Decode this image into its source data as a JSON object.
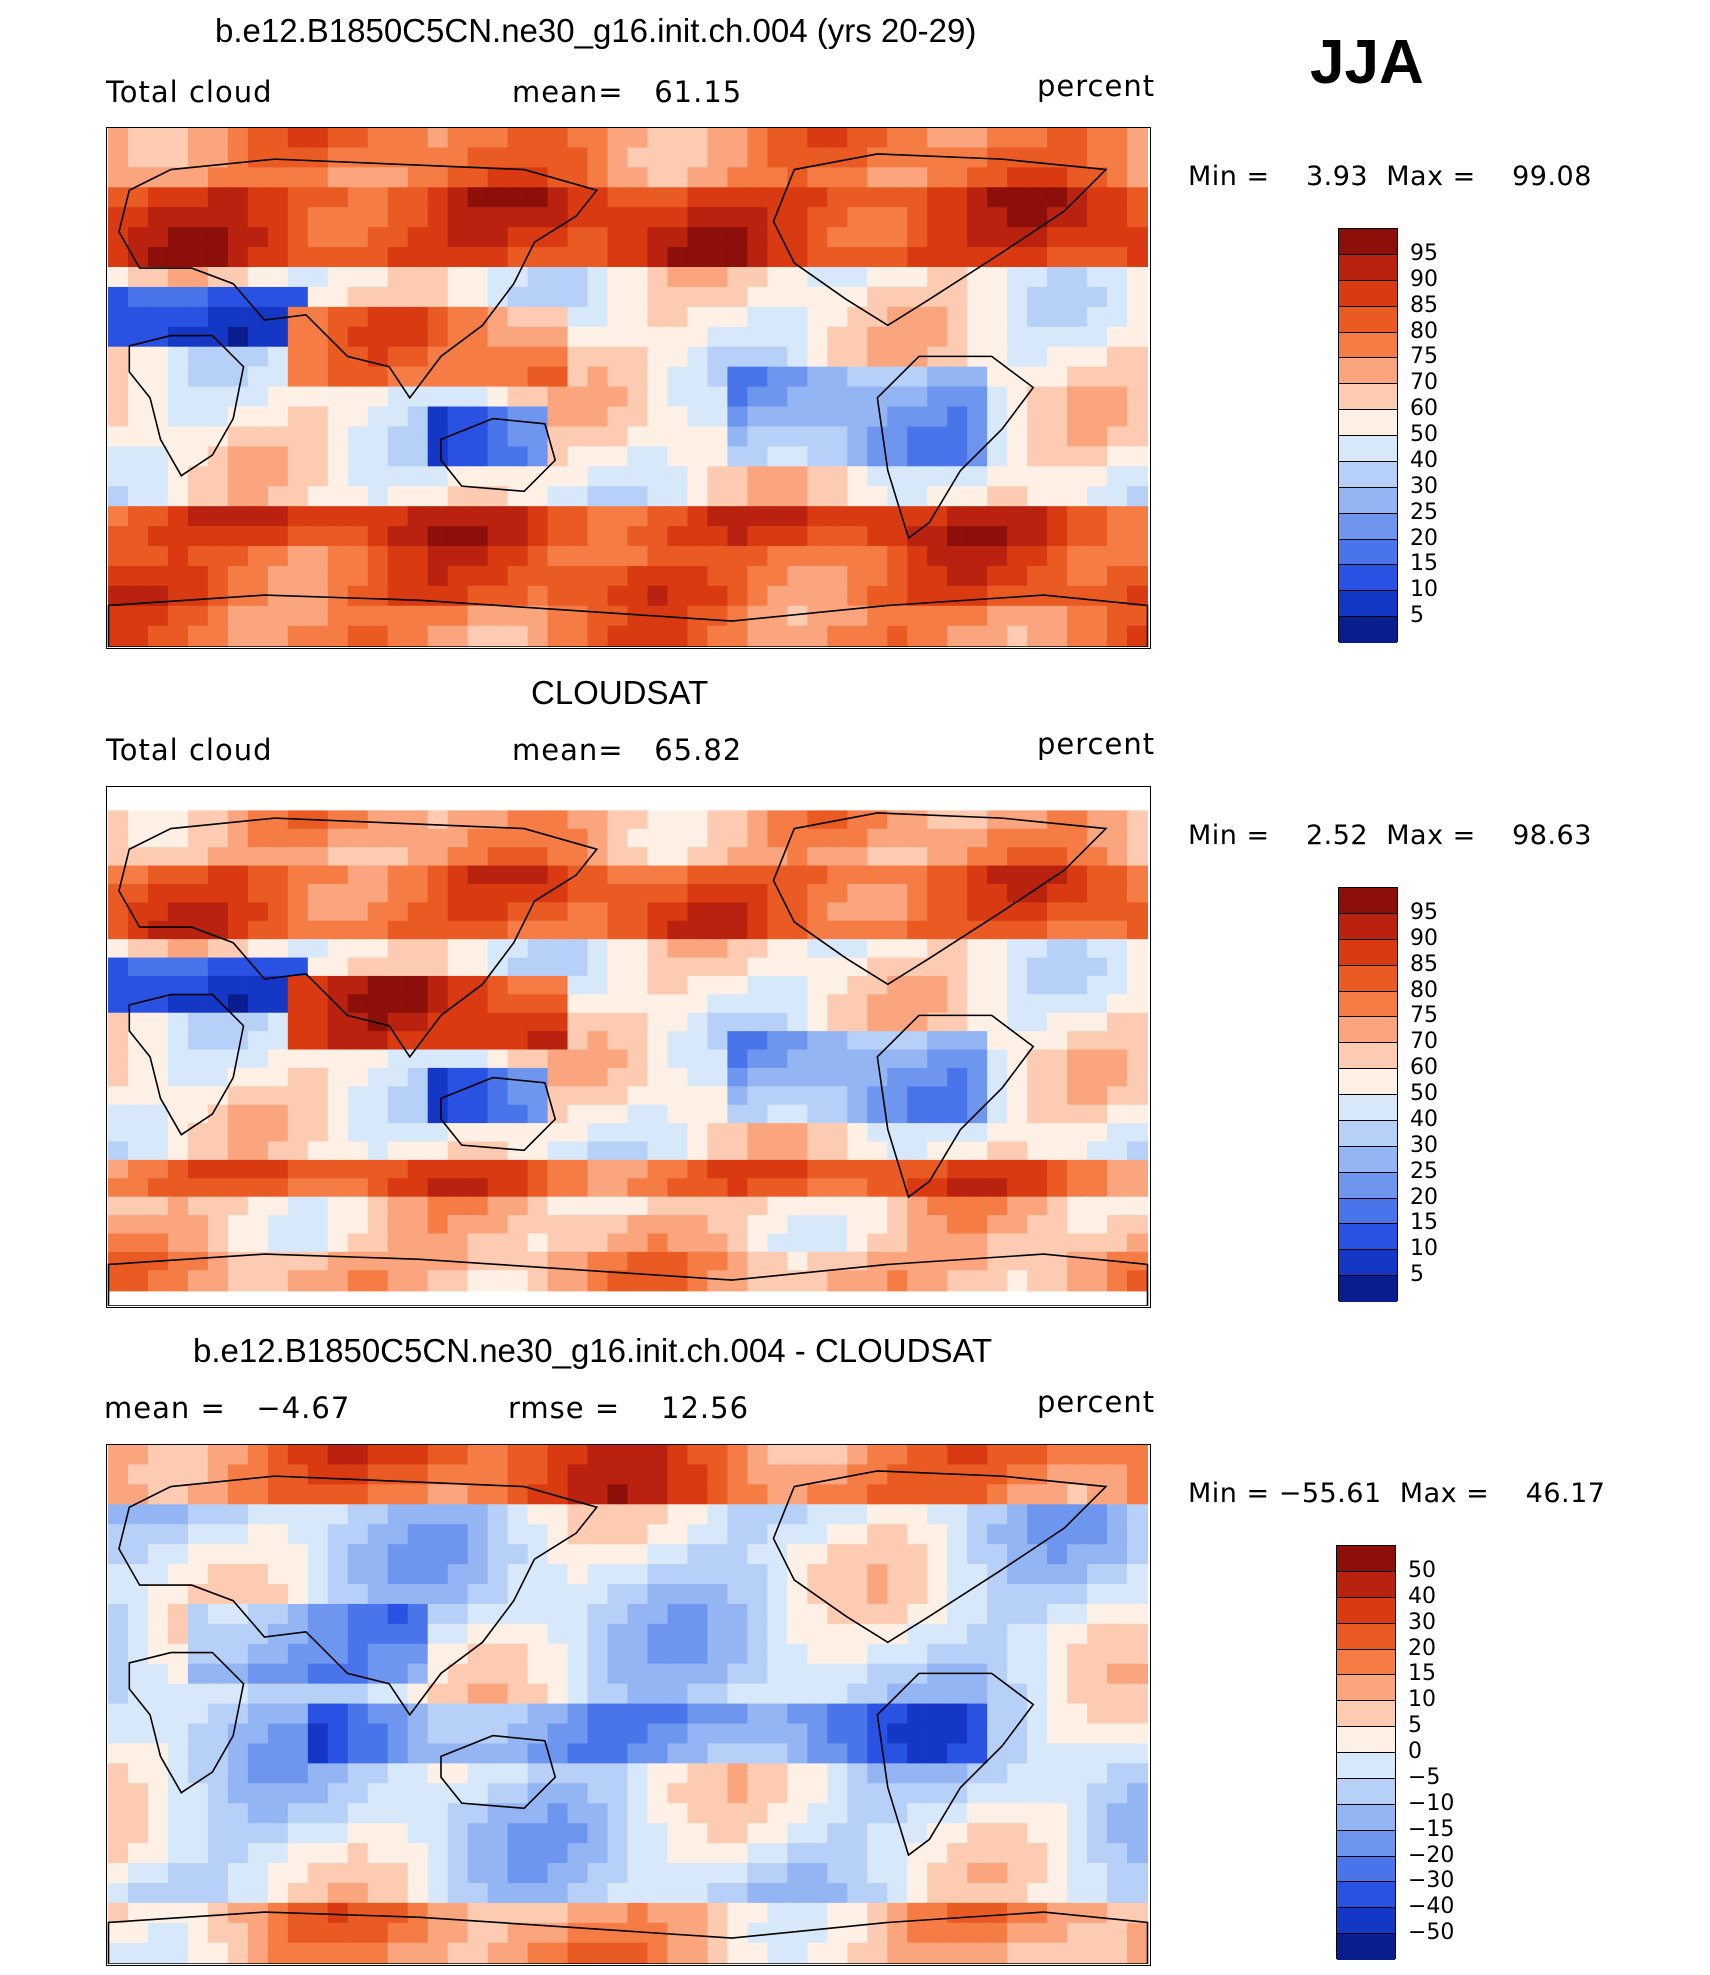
{
  "season": "JJA",
  "panels": [
    {
      "title": "b.e12.B1850C5CN.ne30_g16.init.ch.004 (yrs 20-29)",
      "left_label": "Total cloud",
      "center_label": "mean=   61.15",
      "right_label": "percent",
      "minmax": "Min =    3.93  Max =    99.08",
      "colorbar_labels": [
        "95",
        "90",
        "85",
        "80",
        "75",
        "70",
        "60",
        "50",
        "40",
        "30",
        "25",
        "20",
        "15",
        "10",
        "5"
      ],
      "colorbar_colors": [
        "#8c0f09",
        "#b9220e",
        "#d93a12",
        "#ea5a23",
        "#f57d45",
        "#fba57f",
        "#fdcbb2",
        "#fff0e6",
        "#d8e8fb",
        "#b7d0f8",
        "#94b5f4",
        "#6f96ef",
        "#4a74ea",
        "#2a52e2",
        "#1437c5",
        "#0a1d8f"
      ],
      "map_type": "model"
    },
    {
      "title": "CLOUDSAT",
      "left_label": "Total cloud",
      "center_label": "mean=   65.82",
      "right_label": "percent",
      "minmax": "Min =    2.52  Max =    98.63",
      "colorbar_labels": [
        "95",
        "90",
        "85",
        "80",
        "75",
        "70",
        "60",
        "50",
        "40",
        "30",
        "25",
        "20",
        "15",
        "10",
        "5"
      ],
      "colorbar_colors": [
        "#8c0f09",
        "#b9220e",
        "#d93a12",
        "#ea5a23",
        "#f57d45",
        "#fba57f",
        "#fdcbb2",
        "#fff0e6",
        "#d8e8fb",
        "#b7d0f8",
        "#94b5f4",
        "#6f96ef",
        "#4a74ea",
        "#2a52e2",
        "#1437c5",
        "#0a1d8f"
      ],
      "map_type": "obs"
    },
    {
      "title": "b.e12.B1850C5CN.ne30_g16.init.ch.004 - CLOUDSAT",
      "left_label": "mean =   −4.67",
      "center_label": "rmse =    12.56",
      "right_label": "percent",
      "minmax": "Min = −55.61  Max =    46.17",
      "colorbar_labels": [
        "50",
        "40",
        "30",
        "20",
        "15",
        "10",
        "5",
        "0",
        "−5",
        "−10",
        "−15",
        "−20",
        "−30",
        "−40",
        "−50"
      ],
      "colorbar_colors": [
        "#8c0f09",
        "#b9220e",
        "#d93a12",
        "#ea5a23",
        "#f57d45",
        "#fba57f",
        "#fdcbb2",
        "#fff0e6",
        "#d8e8fb",
        "#b7d0f8",
        "#94b5f4",
        "#6f96ef",
        "#4a74ea",
        "#2a52e2",
        "#1437c5",
        "#0a1d8f"
      ],
      "map_type": "diff"
    }
  ]
}
